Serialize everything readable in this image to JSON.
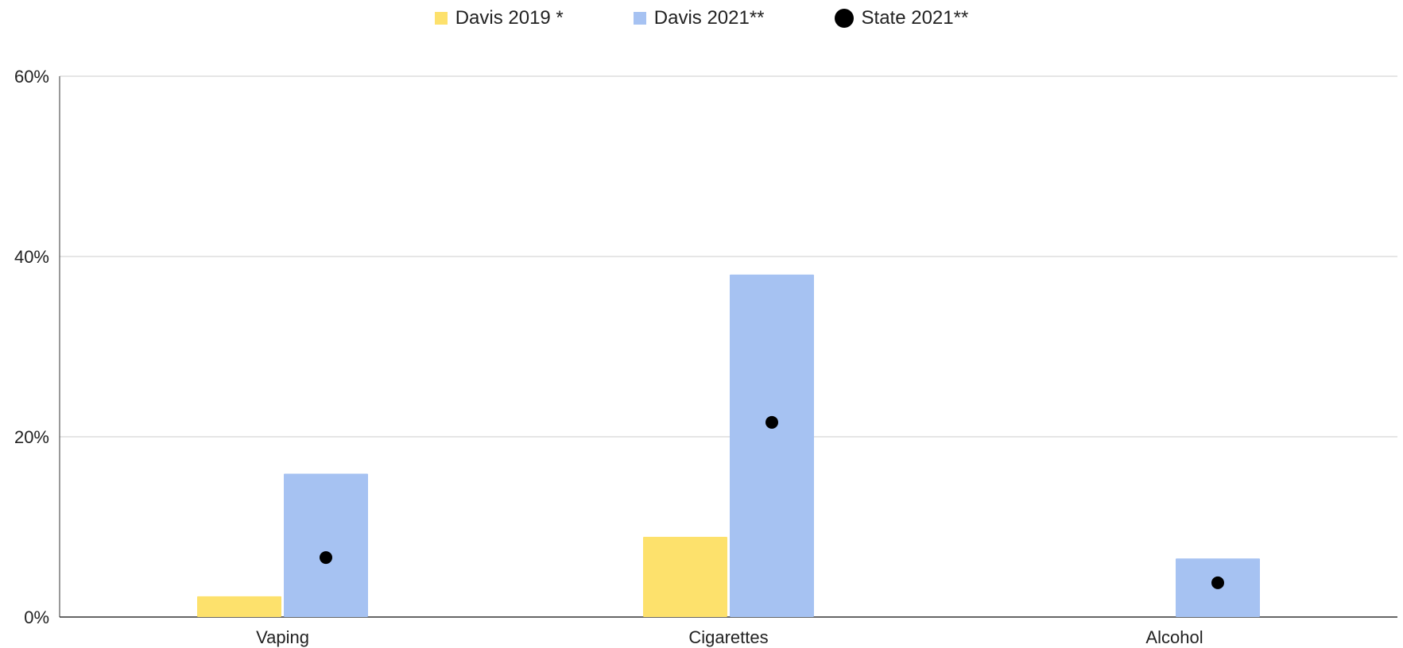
{
  "chart_data": {
    "type": "bar",
    "categories": [
      "Vaping",
      "Cigarettes",
      "Alcohol"
    ],
    "series": [
      {
        "name": "Davis 2019 *",
        "kind": "bar",
        "color": "#FDE16C",
        "values": [
          2.3,
          8.9,
          null
        ]
      },
      {
        "name": "Davis 2021**",
        "kind": "bar",
        "color": "#A6C2F2",
        "values": [
          15.9,
          38.0,
          6.5
        ]
      },
      {
        "name": "State 2021**",
        "kind": "point",
        "color": "#000000",
        "values": [
          6.6,
          21.6,
          3.8
        ]
      }
    ],
    "y_ticks": [
      "0%",
      "20%",
      "40%",
      "60%"
    ],
    "ylim": [
      0,
      60
    ],
    "grid": true,
    "legend_position": "top-center"
  }
}
